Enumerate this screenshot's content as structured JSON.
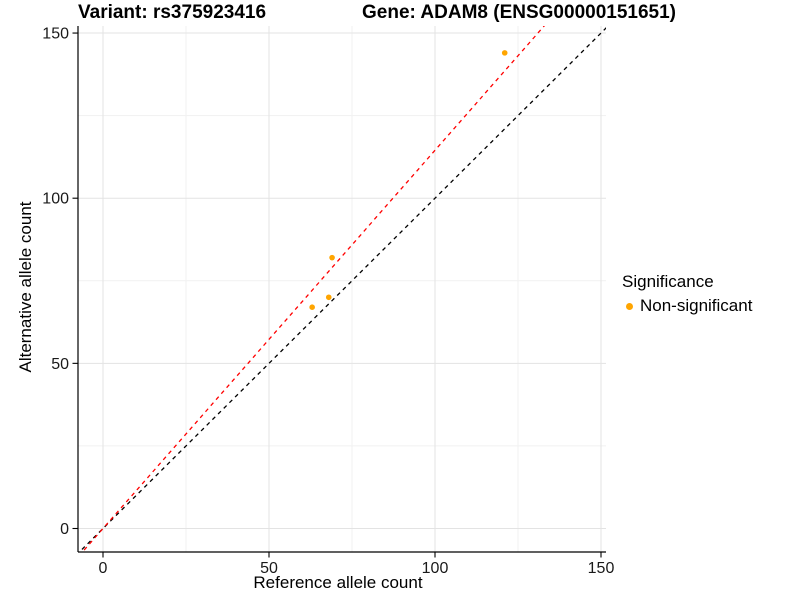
{
  "chart_data": {
    "type": "scatter",
    "titles": {
      "left": "Variant: rs375923416",
      "right": "Gene: ADAM8 (ENSG00000151651)"
    },
    "xlabel": "Reference allele count",
    "ylabel": "Alternative allele count",
    "xlim": [
      -7.5,
      157.5
    ],
    "ylim": [
      -7.5,
      157.5
    ],
    "x_ticks": [
      0,
      50,
      100,
      150
    ],
    "y_ticks": [
      0,
      50,
      100,
      150
    ],
    "x_minor_ticks": [
      25,
      75,
      125
    ],
    "y_minor_ticks": [
      25,
      75,
      125
    ],
    "grid": "major+minor",
    "legend_position": "right",
    "legend": {
      "title": "Significance",
      "items": [
        {
          "label": "Non-significant",
          "color": "#FFA500",
          "marker": "circle"
        }
      ]
    },
    "series": [
      {
        "name": "Non-significant",
        "color": "#FFA500",
        "points": [
          {
            "x": 63,
            "y": 67
          },
          {
            "x": 68,
            "y": 70
          },
          {
            "x": 69,
            "y": 82
          },
          {
            "x": 121,
            "y": 144
          }
        ]
      }
    ],
    "reference_lines": [
      {
        "name": "identity",
        "slope": 1.0,
        "intercept": 0,
        "color": "#000000",
        "dash": "dashed"
      },
      {
        "name": "regression",
        "slope": 1.145,
        "intercept": 0,
        "color": "#FF0000",
        "dash": "dashed"
      }
    ],
    "colors": {
      "grid_major": "#E3E3E3",
      "grid_minor": "#F1F1F1",
      "axis": "#000000",
      "tick_text": "#1A1A1A",
      "point": "#FFA500"
    }
  }
}
